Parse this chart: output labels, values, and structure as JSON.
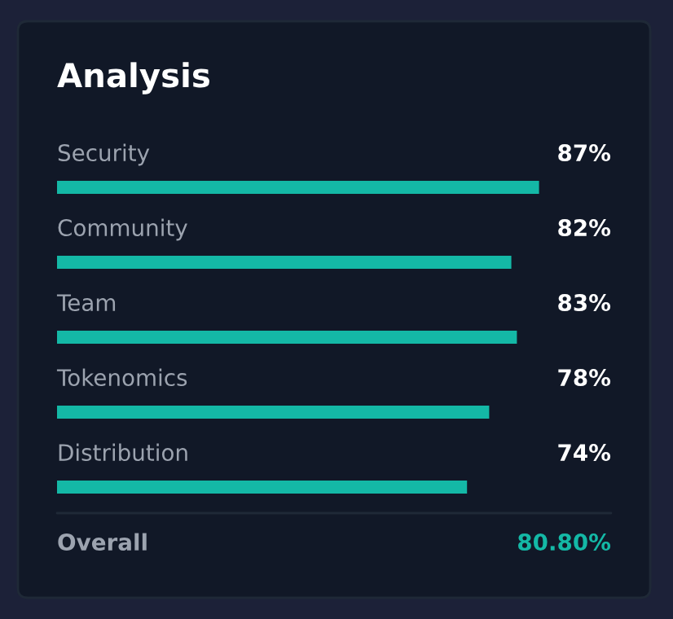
{
  "chart_data": {
    "type": "bar",
    "orientation": "horizontal",
    "title": "Analysis",
    "categories": [
      "Security",
      "Community",
      "Team",
      "Tokenomics",
      "Distribution"
    ],
    "values": [
      87,
      82,
      83,
      78,
      74
    ],
    "value_labels": [
      "87%",
      "82%",
      "83%",
      "78%",
      "74%"
    ],
    "color": "#14b8a6",
    "xlim": [
      0,
      100
    ],
    "tick_labels": false,
    "annotations": [
      "Overall",
      "80.80%"
    ]
  }
}
